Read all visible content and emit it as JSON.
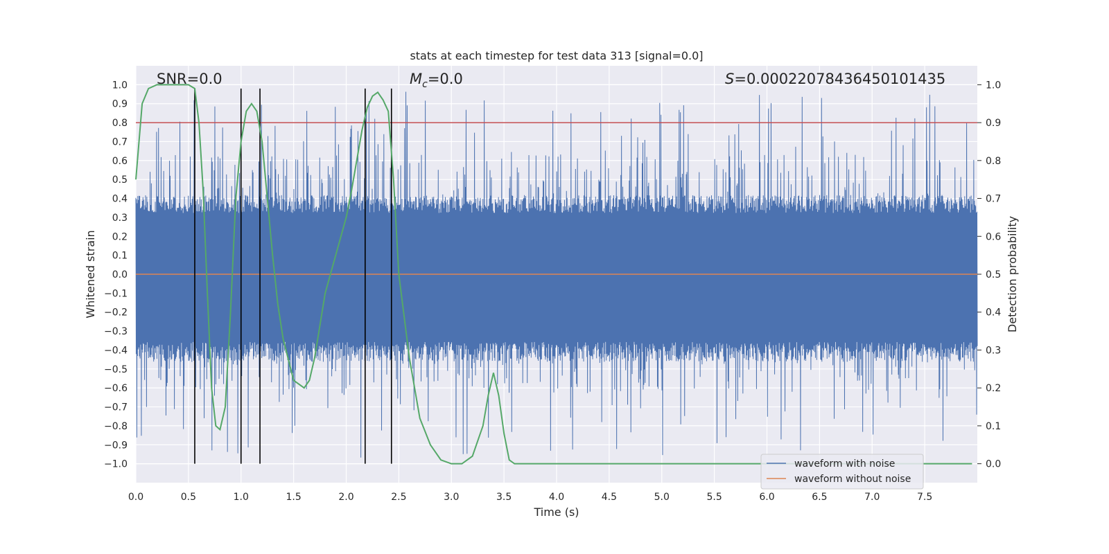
{
  "chart_data": {
    "type": "line",
    "title": "stats at each timestep for test data 313 [signal=0.0]",
    "xlabel": "Time (s)",
    "ylabel": "Whitened strain",
    "y2label": "Detection probability",
    "xlim": [
      0.0,
      8.0
    ],
    "ylim": [
      -1.1,
      1.1
    ],
    "y2lim": [
      -0.05,
      1.05
    ],
    "xticks": [
      0.0,
      0.5,
      1.0,
      1.5,
      2.0,
      2.5,
      3.0,
      3.5,
      4.0,
      4.5,
      5.0,
      5.5,
      6.0,
      6.5,
      7.0,
      7.5
    ],
    "yticks": [
      1.0,
      0.9,
      0.8,
      0.7,
      0.6,
      0.5,
      0.4,
      0.3,
      0.2,
      0.1,
      0.0,
      -0.1,
      -0.2,
      -0.3,
      -0.4,
      -0.5,
      -0.6,
      -0.7,
      -0.8,
      -0.9,
      -1.0
    ],
    "y2ticks": [
      1.0,
      0.9,
      0.8,
      0.7,
      0.6,
      0.5,
      0.4,
      0.3,
      0.2,
      0.1,
      0.0
    ],
    "grid": true,
    "annotations": {
      "snr": "SNR=0.0",
      "mc_symbol": "M",
      "mc_sub": "c",
      "mc_value": "=0.0",
      "s_symbol": "S",
      "s_value": "=0.00022078436450101435"
    },
    "legend": {
      "position": "lower-right",
      "entries": [
        {
          "label": "waveform with noise",
          "color": "#4c72b0"
        },
        {
          "label": "waveform without noise",
          "color": "#dd8452"
        }
      ]
    },
    "series": [
      {
        "name": "waveform with noise",
        "color": "#4c72b0",
        "kind": "noise",
        "typical_envelope": [
          -0.42,
          0.38
        ],
        "peak_abs": 0.97
      },
      {
        "name": "waveform without noise",
        "color": "#dd8452",
        "kind": "constant",
        "value": 0.0
      },
      {
        "name": "detection probability",
        "axis": "right",
        "color": "#55a868",
        "x": [
          0.0,
          0.06,
          0.12,
          0.2,
          0.3,
          0.4,
          0.5,
          0.56,
          0.6,
          0.64,
          0.68,
          0.72,
          0.76,
          0.8,
          0.85,
          0.9,
          0.95,
          1.0,
          1.05,
          1.1,
          1.15,
          1.2,
          1.25,
          1.3,
          1.35,
          1.4,
          1.5,
          1.6,
          1.65,
          1.7,
          1.8,
          1.9,
          2.0,
          2.05,
          2.1,
          2.15,
          2.2,
          2.25,
          2.3,
          2.35,
          2.4,
          2.45,
          2.5,
          2.6,
          2.7,
          2.8,
          2.9,
          3.0,
          3.1,
          3.2,
          3.3,
          3.35,
          3.4,
          3.45,
          3.5,
          3.55,
          3.6,
          3.7,
          3.8,
          4.0,
          5.0,
          6.0,
          7.0,
          7.95
        ],
        "values": [
          0.75,
          0.95,
          0.99,
          1.0,
          1.0,
          1.0,
          1.0,
          0.99,
          0.9,
          0.72,
          0.45,
          0.2,
          0.1,
          0.09,
          0.15,
          0.4,
          0.7,
          0.85,
          0.93,
          0.95,
          0.93,
          0.85,
          0.7,
          0.55,
          0.42,
          0.33,
          0.22,
          0.2,
          0.22,
          0.28,
          0.45,
          0.55,
          0.65,
          0.72,
          0.8,
          0.88,
          0.94,
          0.97,
          0.98,
          0.96,
          0.93,
          0.75,
          0.5,
          0.28,
          0.12,
          0.05,
          0.01,
          0.0,
          0.0,
          0.02,
          0.1,
          0.18,
          0.24,
          0.18,
          0.08,
          0.01,
          0.0,
          0.0,
          0.0,
          0.0,
          0.0,
          0.0,
          0.0,
          0.0
        ]
      }
    ],
    "threshold": {
      "value": 0.9,
      "axis": "right",
      "color": "#c44e52"
    },
    "event_markers": {
      "x": [
        0.56,
        1.0,
        1.18,
        2.18,
        2.43
      ],
      "y_range": [
        -1.0,
        0.98
      ],
      "color": "#000000"
    }
  }
}
